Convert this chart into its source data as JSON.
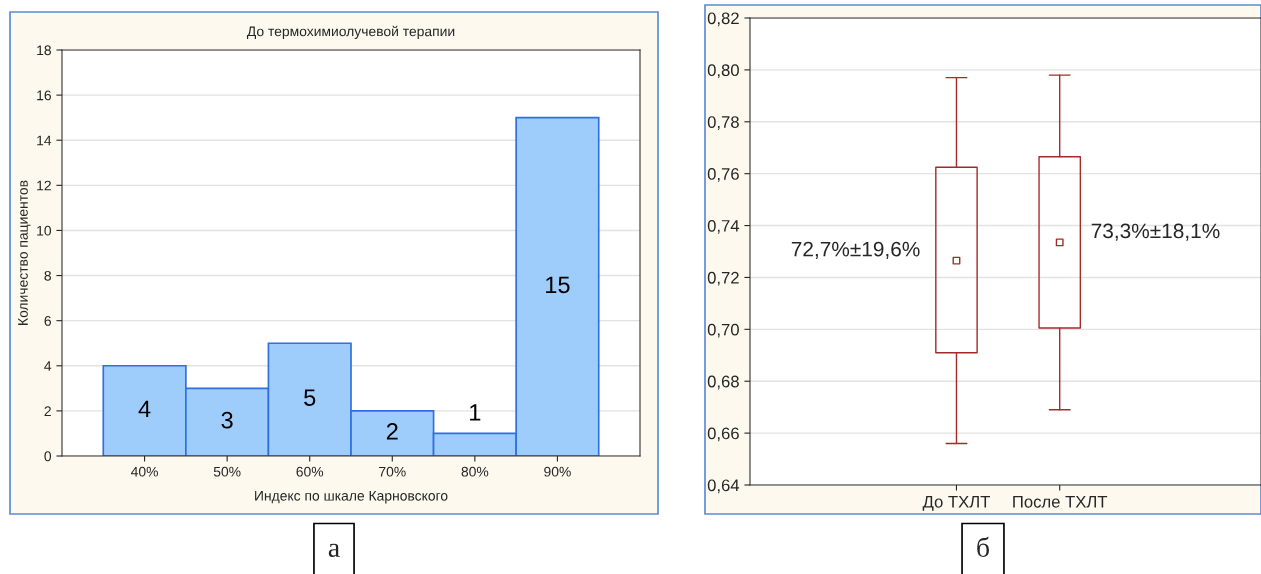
{
  "chart_data": [
    {
      "type": "bar",
      "title": "До термохимиолучевой терапии",
      "xlabel": "Индекс по шкале Карновского",
      "ylabel": "Количество пациентов",
      "categories": [
        "40%",
        "50%",
        "60%",
        "70%",
        "80%",
        "90%"
      ],
      "values": [
        4,
        3,
        5,
        2,
        1,
        15
      ],
      "color": "#9fcdfb",
      "ylim": [
        0,
        18
      ],
      "yticks": [
        0,
        2,
        4,
        6,
        8,
        10,
        12,
        14,
        16,
        18
      ],
      "grid": "y",
      "data_labels": true,
      "annotations": [
        "а"
      ]
    },
    {
      "type": "box",
      "categories": [
        "До ТХЛТ",
        "После ТХЛТ"
      ],
      "color": "#a52a2a",
      "boxes": [
        {
          "low": 0.656,
          "q1": 0.691,
          "median": 0.7265,
          "q3": 0.7625,
          "high": 0.797
        },
        {
          "low": 0.669,
          "q1": 0.7005,
          "median": 0.7335,
          "q3": 0.7665,
          "high": 0.798
        }
      ],
      "ylim": [
        0.64,
        0.82
      ],
      "yticks": [
        {
          "value": 0.64,
          "label": "0,64"
        },
        {
          "value": 0.66,
          "label": "0,66"
        },
        {
          "value": 0.68,
          "label": "0,68"
        },
        {
          "value": 0.7,
          "label": "0,70"
        },
        {
          "value": 0.72,
          "label": "0,72"
        },
        {
          "value": 0.74,
          "label": "0,74"
        },
        {
          "value": 0.76,
          "label": "0,76"
        },
        {
          "value": 0.78,
          "label": "0,78"
        },
        {
          "value": 0.8,
          "label": "0,80"
        },
        {
          "value": 0.82,
          "label": "0,82"
        }
      ],
      "grid": "y",
      "marker": "square",
      "annotations": [
        "72,7%±19,6%",
        "73,3%±18,1%",
        "б"
      ]
    }
  ]
}
